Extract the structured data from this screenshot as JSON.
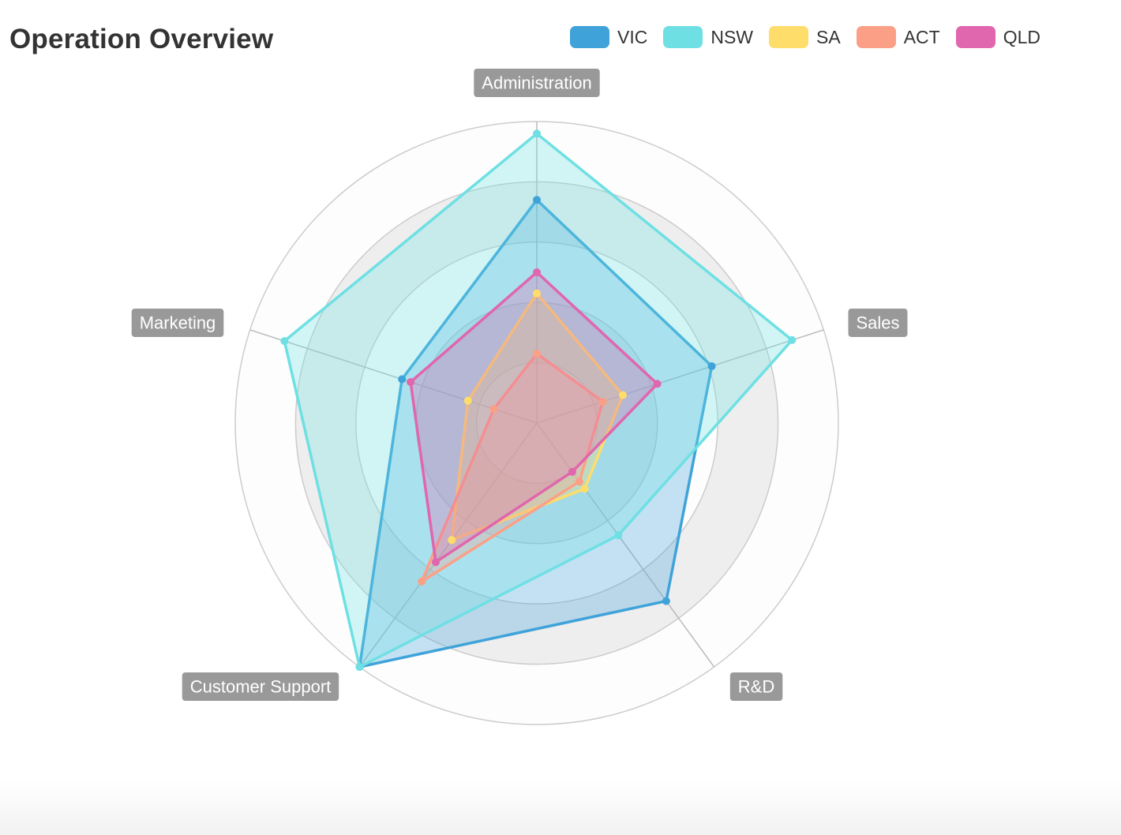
{
  "title": "Operation Overview",
  "chart_data": {
    "type": "radar",
    "indicators": [
      "Administration",
      "Sales",
      "R&D",
      "Customer Support",
      "Marketing"
    ],
    "max": 10000,
    "rings": 5,
    "series": [
      {
        "name": "VIC",
        "color": "#3fa3d9",
        "values": [
          7400,
          6100,
          7300,
          10000,
          4700
        ]
      },
      {
        "name": "NSW",
        "color": "#6ee0e3",
        "values": [
          9600,
          8900,
          4600,
          10000,
          8800
        ]
      },
      {
        "name": "SA",
        "color": "#fedd6a",
        "values": [
          4300,
          3000,
          2700,
          4800,
          2400
        ]
      },
      {
        "name": "ACT",
        "color": "#fba087",
        "values": [
          2300,
          2300,
          2400,
          6500,
          1500
        ]
      },
      {
        "name": "QLD",
        "color": "#e066ad",
        "values": [
          5000,
          4200,
          2000,
          5700,
          4400
        ]
      }
    ]
  }
}
